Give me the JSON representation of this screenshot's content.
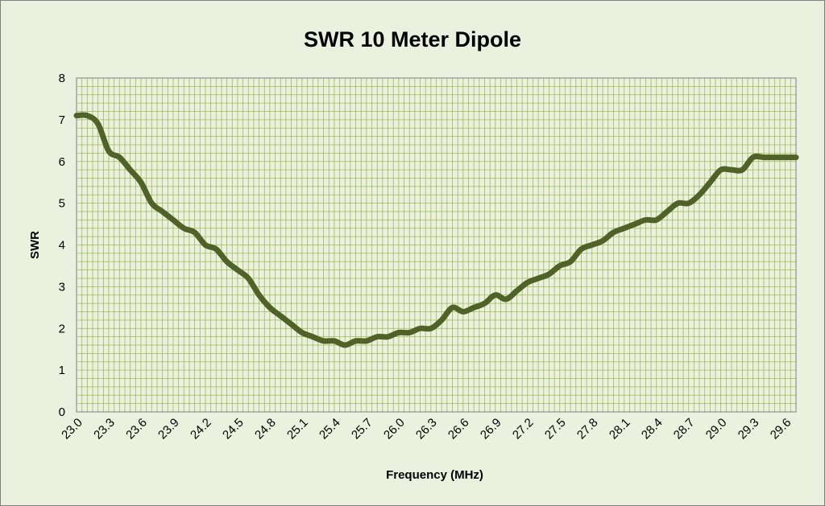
{
  "chart_data": {
    "type": "line",
    "title": "SWR 10 Meter Dipole",
    "xlabel": "Frequency (MHz)",
    "ylabel": "SWR",
    "xlim": [
      23.0,
      29.7
    ],
    "ylim": [
      0,
      8
    ],
    "x_tick_labels": [
      "23.0",
      "23.3",
      "23.6",
      "23.9",
      "24.2",
      "24.5",
      "24.8",
      "25.1",
      "25.4",
      "25.7",
      "26.0",
      "26.3",
      "26.6",
      "26.9",
      "27.2",
      "27.5",
      "27.8",
      "28.1",
      "28.4",
      "28.7",
      "29.0",
      "29.3",
      "29.6"
    ],
    "y_tick_labels": [
      "0",
      "1",
      "2",
      "3",
      "4",
      "5",
      "6",
      "7",
      "8"
    ],
    "grid": true,
    "colors": {
      "line": "#4f6228",
      "grid": "#9bbb59",
      "background": "#ebf1de"
    },
    "series": [
      {
        "x": [
          23.0,
          23.1,
          23.2,
          23.3,
          23.4,
          23.5,
          23.6,
          23.7,
          23.8,
          23.9,
          24.0,
          24.1,
          24.2,
          24.3,
          24.4,
          24.5,
          24.6,
          24.7,
          24.8,
          24.9,
          25.0,
          25.1,
          25.2,
          25.3,
          25.4,
          25.5,
          25.6,
          25.7,
          25.8,
          25.9,
          26.0,
          26.1,
          26.2,
          26.3,
          26.4,
          26.5,
          26.6,
          26.7,
          26.8,
          26.9,
          27.0,
          27.1,
          27.2,
          27.3,
          27.4,
          27.5,
          27.6,
          27.7,
          27.8,
          27.9,
          28.0,
          28.1,
          28.2,
          28.3,
          28.4,
          28.5,
          28.6,
          28.7,
          28.8,
          28.9,
          29.0,
          29.1,
          29.2,
          29.3,
          29.4,
          29.5,
          29.6,
          29.7
        ],
        "values": [
          7.1,
          7.1,
          6.9,
          6.25,
          6.1,
          5.8,
          5.5,
          5.0,
          4.8,
          4.6,
          4.4,
          4.3,
          4.0,
          3.9,
          3.6,
          3.4,
          3.2,
          2.8,
          2.5,
          2.3,
          2.1,
          1.9,
          1.8,
          1.7,
          1.7,
          1.6,
          1.7,
          1.7,
          1.8,
          1.8,
          1.9,
          1.9,
          2.0,
          2.0,
          2.2,
          2.5,
          2.4,
          2.5,
          2.6,
          2.8,
          2.7,
          2.9,
          3.1,
          3.2,
          3.3,
          3.5,
          3.6,
          3.9,
          4.0,
          4.1,
          4.3,
          4.4,
          4.5,
          4.6,
          4.6,
          4.8,
          5.0,
          5.0,
          5.2,
          5.5,
          5.8,
          5.8,
          5.8,
          6.1,
          6.1,
          6.1,
          6.1,
          6.1
        ]
      }
    ]
  }
}
